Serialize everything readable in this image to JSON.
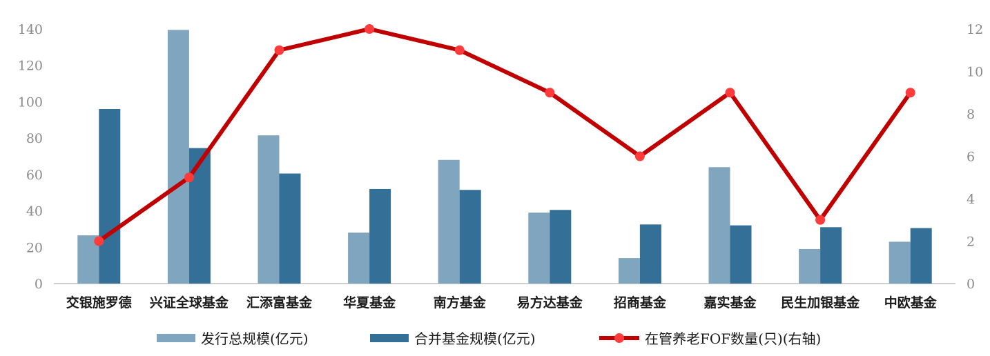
{
  "chart_data": {
    "type": "bar",
    "categories": [
      "交银施罗德",
      "兴证全球基金",
      "汇添富基金",
      "华夏基金",
      "南方基金",
      "易方达基金",
      "招商基金",
      "嘉实基金",
      "民生加银基金",
      "中欧基金"
    ],
    "series": [
      {
        "name": "发行总规模(亿元)",
        "type": "bar",
        "axis": "left",
        "color": "#7fa5bf",
        "values": [
          26.5,
          139.5,
          81.5,
          28,
          68,
          39,
          14,
          64,
          19,
          23
        ]
      },
      {
        "name": "合并基金规模(亿元)",
        "type": "bar",
        "axis": "left",
        "color": "#336f97",
        "values": [
          96,
          74.5,
          60.5,
          52,
          51.5,
          40.5,
          32.5,
          32,
          31,
          30.5
        ]
      },
      {
        "name": "在管养老FOF数量(只)(右轴)",
        "type": "line",
        "axis": "right",
        "color": "#c00000",
        "marker_color": "#ff3b3b",
        "values": [
          2,
          5,
          11,
          12,
          11,
          9,
          6,
          9,
          3,
          9
        ]
      }
    ],
    "y_left": {
      "min": 0,
      "max": 140,
      "ticks": [
        "0",
        "20",
        "40",
        "60",
        "80",
        "100",
        "120",
        "140"
      ]
    },
    "y_right": {
      "min": 0,
      "max": 12,
      "ticks": [
        "0",
        "2",
        "4",
        "6",
        "8",
        "10",
        "12"
      ]
    },
    "grid": false,
    "legend_position": "bottom"
  }
}
